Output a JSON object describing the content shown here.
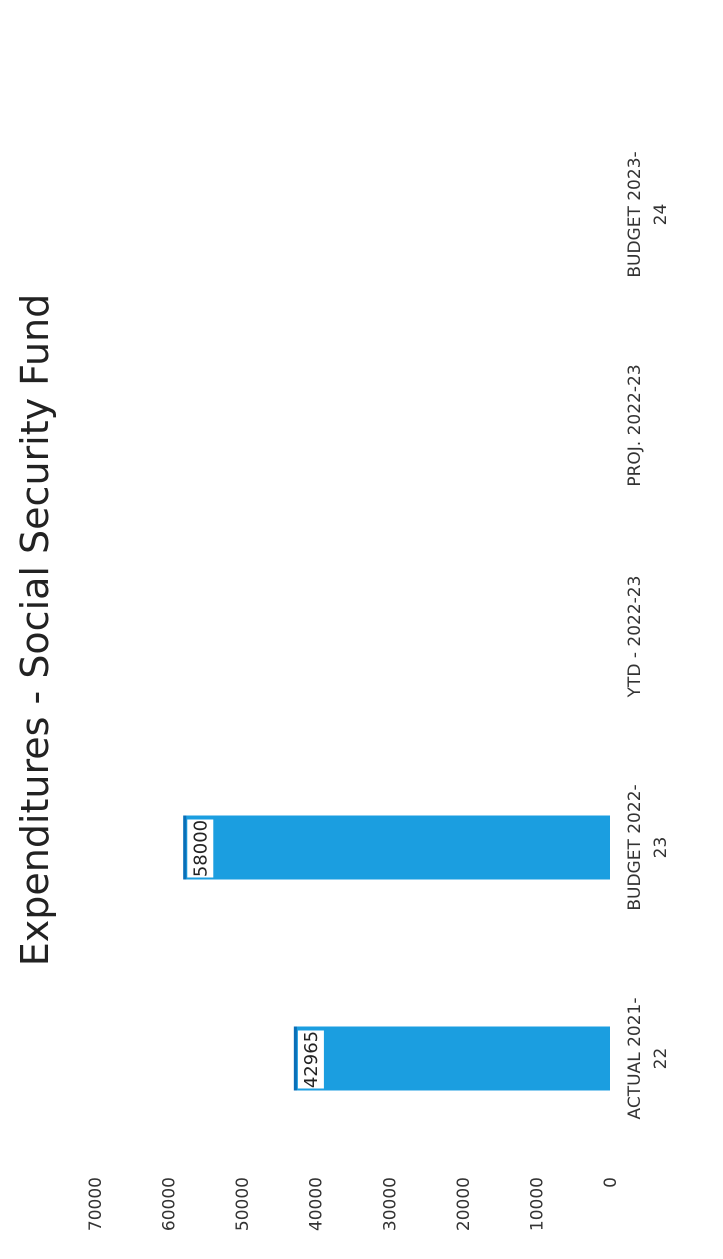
{
  "chart_data": {
    "type": "bar",
    "title": "Expenditures - Social Security Fund",
    "categories": [
      "ACTUAL 2021-22",
      "BUDGET 2022-23",
      "YTD - 2022-23",
      "PROJ. 2022-23",
      "BUDGET 2023-24"
    ],
    "category_labels": [
      [
        "ACTUAL 2021-",
        "22"
      ],
      [
        "BUDGET 2022-",
        "23"
      ],
      [
        "YTD - 2022-23"
      ],
      [
        "PROJ. 2022-23"
      ],
      [
        "BUDGET 2023-",
        "24"
      ]
    ],
    "values": [
      42965,
      58000,
      null,
      null,
      null
    ],
    "data_labels": [
      "42965",
      "58000",
      "",
      "",
      ""
    ],
    "ylim": [
      0,
      70000
    ],
    "y_ticks": [
      "0",
      "10000",
      "20000",
      "30000",
      "40000",
      "50000",
      "60000",
      "70000"
    ],
    "xlabel": "",
    "ylabel": "",
    "grid": false,
    "legend": "none",
    "bar_color": "#1b9ee0",
    "bar_highlight": "#0a6fb8"
  }
}
